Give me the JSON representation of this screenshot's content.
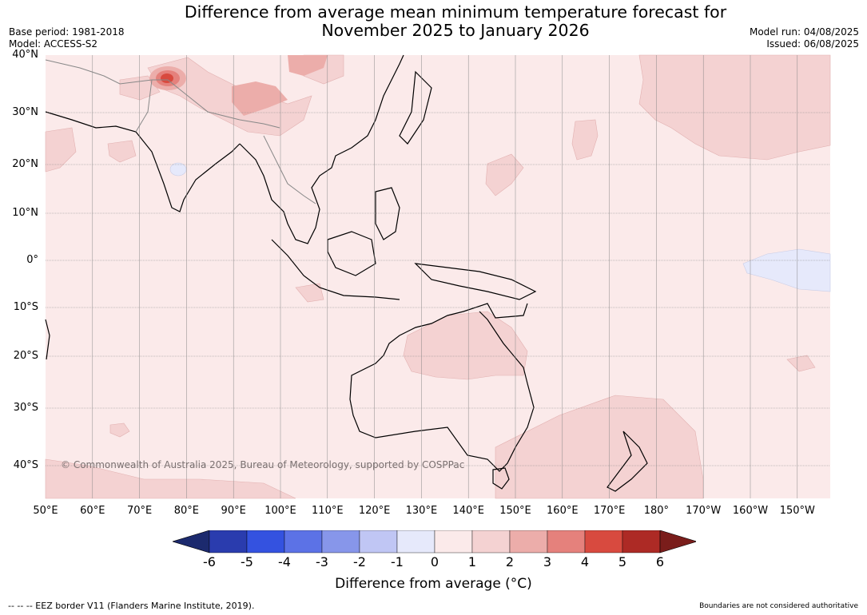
{
  "title_line1": "Difference from average mean minimum temperature forecast for",
  "title_line2": "November 2025 to January 2026",
  "base_period": "Base period: 1981-2018",
  "model": "Model: ACCESS-S2",
  "model_run": "Model run: 04/08/2025",
  "issued": "Issued: 06/08/2025",
  "copyright": "© Commonwealth of Australia 2025, Bureau of Meteorology, supported by COSPPac",
  "lon_labels": [
    "50°E",
    "60°E",
    "70°E",
    "80°E",
    "90°E",
    "100°E",
    "110°E",
    "120°E",
    "130°E",
    "140°E",
    "150°E",
    "160°E",
    "170°E",
    "180°",
    "170°W",
    "160°W",
    "150°W"
  ],
  "lat_labels": [
    "40°N",
    "30°N",
    "20°N",
    "10°N",
    "0°",
    "10°S",
    "20°S",
    "30°S",
    "40°S"
  ],
  "colorbar": {
    "ticks": [
      "-6",
      "-5",
      "-4",
      "-3",
      "-2",
      "-1",
      "0",
      "1",
      "2",
      "3",
      "4",
      "5",
      "6"
    ],
    "colors": [
      "#1c2a6e",
      "#2a3cae",
      "#3452e0",
      "#5c72e6",
      "#8796ea",
      "#c0c6f4",
      "#e6e9fb",
      "#fbeaea",
      "#f4d2d2",
      "#ecadaa",
      "#e5817c",
      "#d84a3f",
      "#ad2a25",
      "#7a1d1b"
    ],
    "title": "Difference from average (°C)"
  },
  "footer_left": "-- -- -- EEZ border V11 (Flanders Marine Institute, 2019).",
  "footer_right": "Boundaries are not considered authoritative",
  "map_colors": {
    "base": "#fbeaea",
    "light_red": "#f4d2d2",
    "mid_red": "#ecadaa",
    "red": "#e5817c",
    "dark_red": "#d84a3f",
    "blue": "#e6e9fb"
  }
}
